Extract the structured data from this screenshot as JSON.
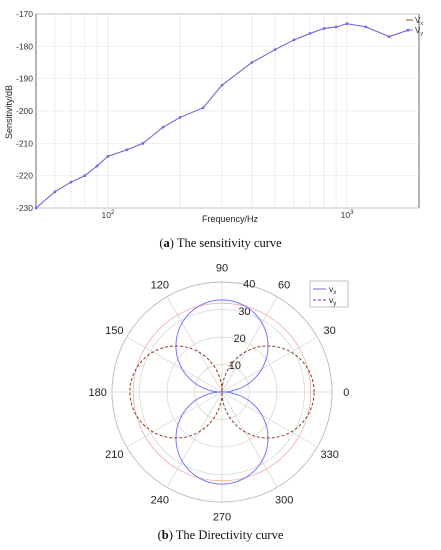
{
  "colors": {
    "vx": "#6a6ef0",
    "vy": "#8b3a1e",
    "grid": "#e6e6e6",
    "axis": "#444444",
    "circle_ref": "#f0b0b0"
  },
  "chart_data": [
    {
      "type": "line",
      "xlabel": "Frequency/Hz",
      "ylabel": "Sensitivity/dB",
      "xscale": "log",
      "xlim": [
        50,
        2000
      ],
      "ylim": [
        -230,
        -170
      ],
      "yticks": [
        -170,
        -180,
        -190,
        -200,
        -210,
        -220,
        -230
      ],
      "xtick_labels": [
        {
          "value": 100,
          "base": "10",
          "exp": "2"
        },
        {
          "value": 1000,
          "base": "10",
          "exp": "3"
        }
      ],
      "grid": true,
      "legend": "top-right",
      "series": [
        {
          "name": "V",
          "sub": "x",
          "x": [
            50,
            60,
            70,
            80,
            90,
            100,
            120,
            140,
            170,
            200,
            250,
            300,
            400,
            500,
            600,
            700,
            800,
            900,
            1000,
            1200,
            1500,
            1800
          ],
          "values": [
            -230,
            -225,
            -222,
            -220,
            -217,
            -214,
            -212,
            -210,
            -205,
            -202,
            -199,
            -192,
            -185,
            -181,
            -178,
            -176,
            -174.5,
            -174,
            -173,
            -174,
            -177,
            -175
          ]
        },
        {
          "name": "V",
          "sub": "y",
          "x": [
            50,
            60,
            70,
            80,
            90,
            100,
            120,
            140,
            170,
            200,
            250,
            300,
            400,
            500,
            600,
            700,
            800,
            900,
            1000,
            1200,
            1500,
            1800
          ],
          "values": [
            -230,
            -225,
            -222,
            -220,
            -217,
            -214,
            -212,
            -210,
            -205,
            -202,
            -199,
            -192,
            -185,
            -181,
            -178,
            -176,
            -174.5,
            -174,
            -173,
            -174,
            -177,
            -175
          ]
        }
      ],
      "caption": {
        "label": "a",
        "text": " The sensitivity curve"
      }
    },
    {
      "type": "polar",
      "rlim": [
        0,
        40
      ],
      "rticks": [
        10,
        20,
        30,
        40
      ],
      "angle_ticks": [
        0,
        30,
        60,
        90,
        120,
        150,
        180,
        210,
        240,
        270,
        300,
        330
      ],
      "grid": true,
      "legend": "top-right",
      "series": [
        {
          "name": "v",
          "sub": "x",
          "pattern": "abs_sin",
          "r_max": 33.5,
          "style": "solid"
        },
        {
          "name": "v",
          "sub": "y",
          "pattern": "abs_cos",
          "r_max": 33.5,
          "style": "dashed"
        }
      ],
      "reference_circle_r": 34,
      "caption": {
        "label": "b",
        "text": " The Directivity curve"
      }
    }
  ]
}
